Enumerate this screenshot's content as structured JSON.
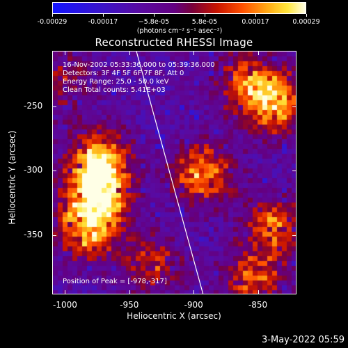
{
  "colorbar": {
    "ticks": [
      "-0.00029",
      "-0.00017",
      "−5.8e-05",
      "5.8e-05",
      "0.00017",
      "0.00029"
    ],
    "units": "(photons cm⁻² s⁻¹ asec⁻²)",
    "range": [
      -0.00029,
      0.00029
    ]
  },
  "chart_data": {
    "type": "heatmap",
    "title": "Reconstructed RHESSI Image",
    "xlabel": "Heliocentric X (arcsec)",
    "ylabel": "Heliocentric Y (arcsec)",
    "xlim": [
      -1010,
      -820
    ],
    "ylim": [
      -396,
      -207
    ],
    "xticks": [
      "-1000",
      "-950",
      "-900",
      "-850"
    ],
    "yticks": [
      "-250",
      "-300",
      "-350"
    ],
    "xtick_values": [
      -1000,
      -950,
      -900,
      -850
    ],
    "ytick_values": [
      -250,
      -300,
      -350
    ],
    "annotations": {
      "line1": "16-Nov-2002 05:33:36.000 to 05:39:36.000",
      "line2": "Detectors: 3F 4F 5F 6F 7F 8F, Att 0",
      "line3": "Energy Range: 25.0 - 50.0 keV",
      "line4": "Clean     Total counts: 5.41E+03",
      "peak": "Position of Peak = [-978,-317]"
    },
    "peak": [
      -978,
      -317
    ],
    "limb_line": [
      [
        -945,
        -207
      ],
      [
        -893,
        -396
      ]
    ],
    "hot_regions": [
      {
        "x": -978,
        "y": -317,
        "intensity": 1.0
      },
      {
        "x": -975,
        "y": -290,
        "intensity": 0.85
      },
      {
        "x": -985,
        "y": -345,
        "intensity": 0.7
      },
      {
        "x": -895,
        "y": -300,
        "intensity": 0.7
      },
      {
        "x": -840,
        "y": -245,
        "intensity": 0.75
      },
      {
        "x": -860,
        "y": -230,
        "intensity": 0.6
      },
      {
        "x": -840,
        "y": -340,
        "intensity": 0.6
      },
      {
        "x": -855,
        "y": -380,
        "intensity": 0.55
      },
      {
        "x": -935,
        "y": -370,
        "intensity": 0.45
      },
      {
        "x": -1005,
        "y": -230,
        "intensity": 0.35
      }
    ]
  },
  "timestamp": "3-May-2022 05:59"
}
